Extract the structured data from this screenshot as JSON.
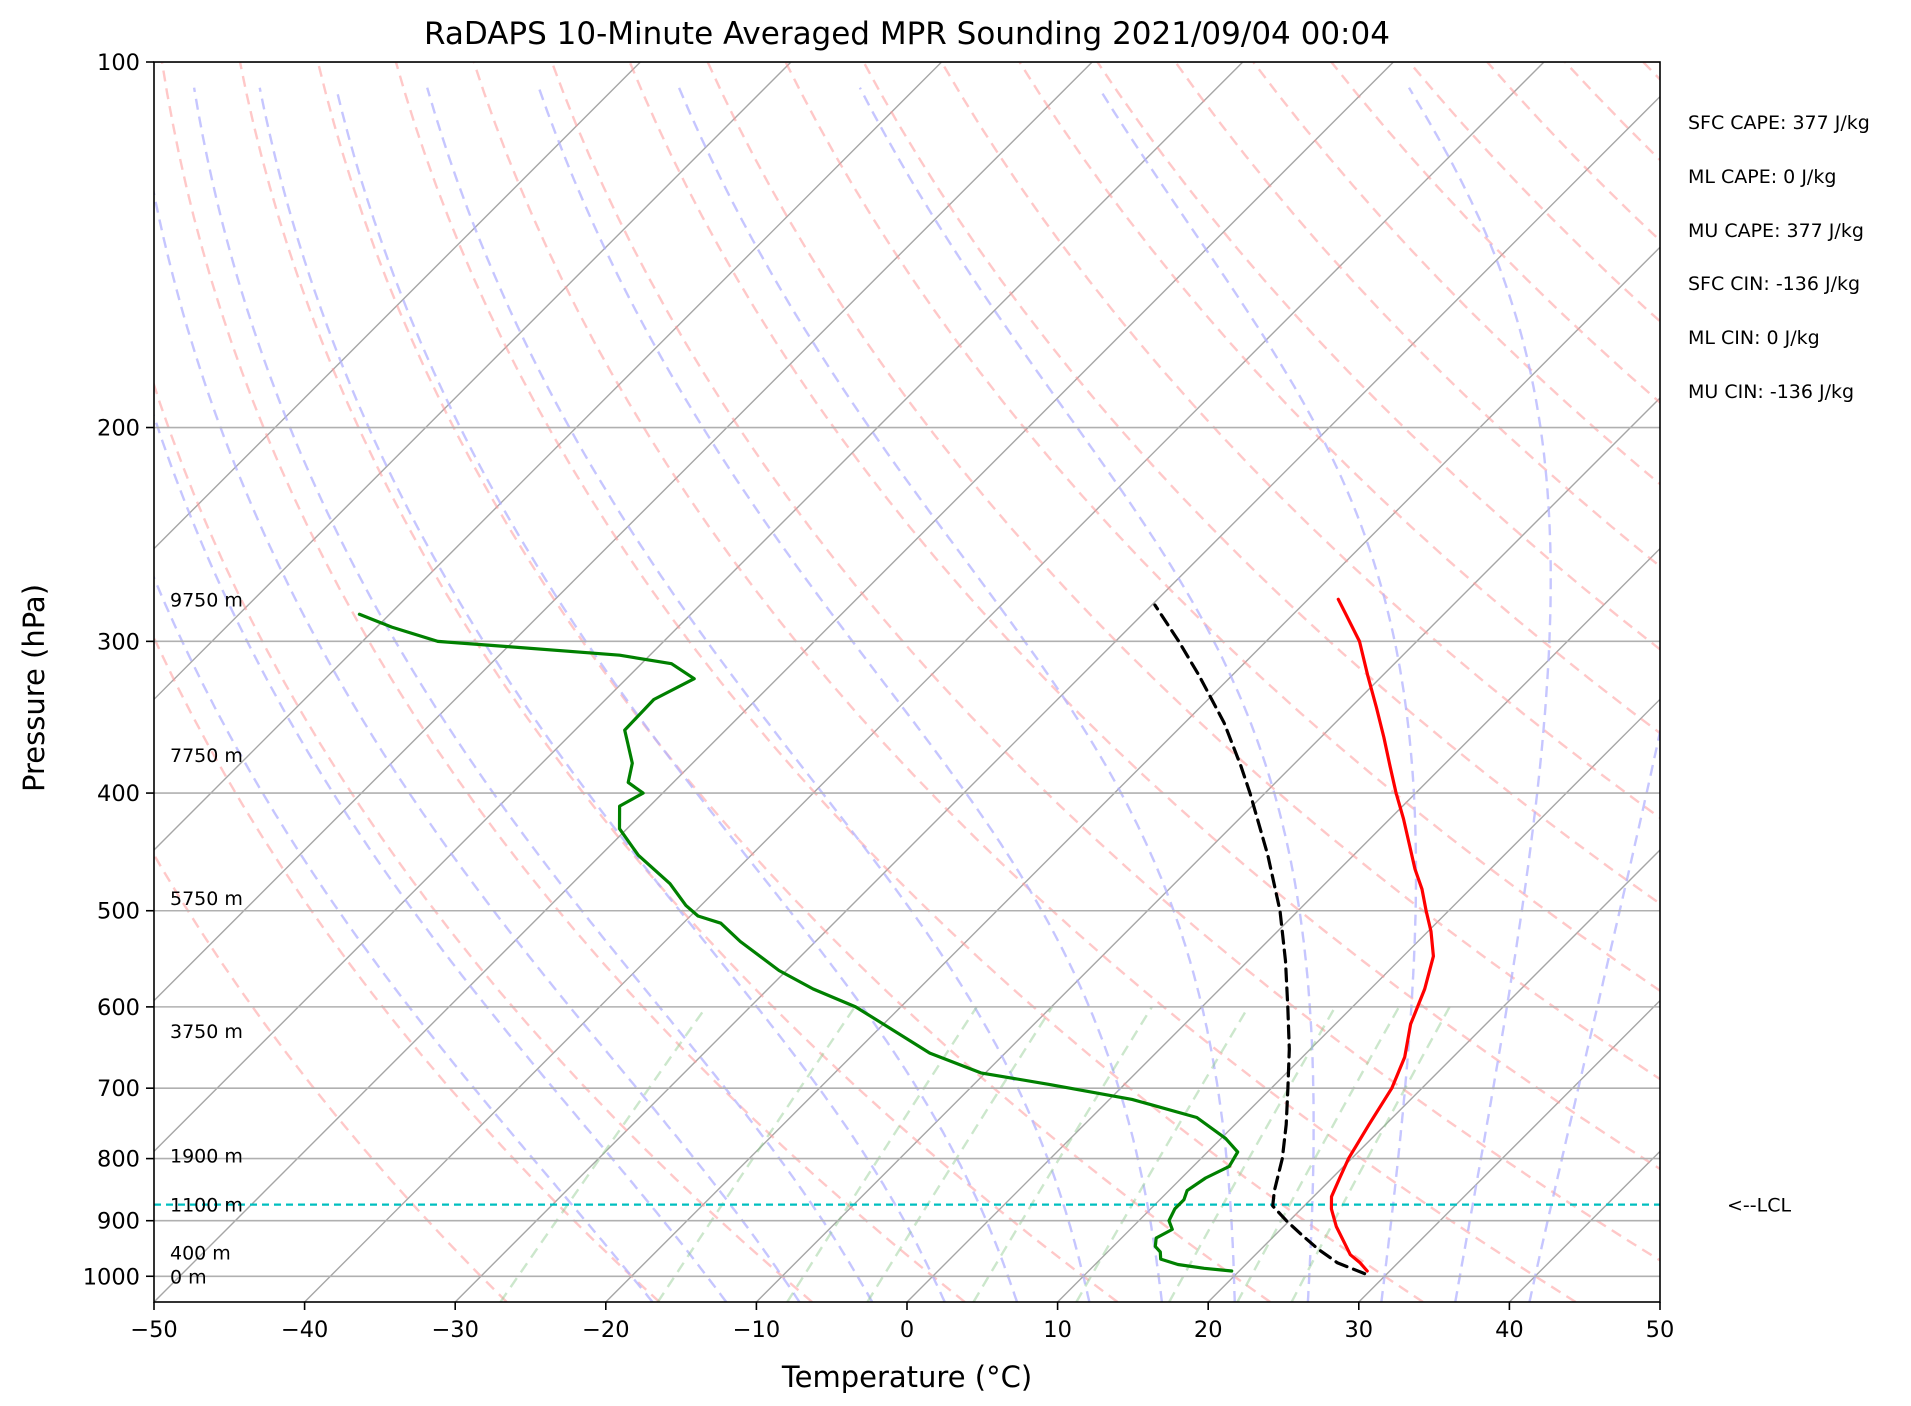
{
  "chart_data": {
    "type": "line",
    "title": "RaDAPS 10-Minute Averaged MPR Sounding 2021/09/04 00:04",
    "xlabel": "Temperature (°C)",
    "ylabel": "Pressure (hPa)",
    "xlim": [
      -50,
      50
    ],
    "ylim": [
      1050,
      100
    ],
    "y_scale": "log",
    "x_ticks": [
      "−50",
      "−40",
      "−30",
      "−20",
      "−10",
      "0",
      "10",
      "20",
      "30",
      "40",
      "50"
    ],
    "y_ticks": [
      "100",
      "200",
      "300",
      "400",
      "500",
      "600",
      "700",
      "800",
      "900",
      "1000"
    ],
    "x_tick_values": [
      -50,
      -40,
      -30,
      -20,
      -10,
      0,
      10,
      20,
      30,
      40,
      50
    ],
    "y_tick_values": [
      100,
      200,
      300,
      400,
      500,
      600,
      700,
      800,
      900,
      1000
    ],
    "grid": true,
    "background_lines": {
      "isotherms_C": [
        -100,
        -90,
        -80,
        -70,
        -60,
        -50,
        -40,
        -30,
        -20,
        -10,
        0,
        10,
        20,
        30,
        40,
        50
      ],
      "dry_adiabats_C": [
        -30,
        -20,
        -10,
        0,
        10,
        20,
        30,
        40,
        50,
        60,
        70,
        80,
        90,
        100,
        110,
        120,
        130,
        140,
        150,
        160,
        170,
        180,
        190,
        200
      ],
      "moist_adiabats_C": [
        -20,
        -15,
        -10,
        -5,
        0,
        5,
        10,
        15,
        20,
        25,
        30,
        35,
        40
      ],
      "mixing_ratio_lines_gkg": [
        0.4,
        1,
        2,
        3,
        5,
        8,
        12,
        16,
        20
      ]
    },
    "series": [
      {
        "role": "temperature",
        "color": "#ff0000",
        "points": [
          {
            "p": 990,
            "t": 28.5
          },
          {
            "p": 975,
            "t": 27.5
          },
          {
            "p": 960,
            "t": 26.3
          },
          {
            "p": 940,
            "t": 25.2
          },
          {
            "p": 910,
            "t": 23.5
          },
          {
            "p": 880,
            "t": 22.0
          },
          {
            "p": 860,
            "t": 21.2
          },
          {
            "p": 830,
            "t": 20.5
          },
          {
            "p": 800,
            "t": 19.8
          },
          {
            "p": 750,
            "t": 18.9
          },
          {
            "p": 700,
            "t": 18.0
          },
          {
            "p": 660,
            "t": 16.8
          },
          {
            "p": 620,
            "t": 15.0
          },
          {
            "p": 580,
            "t": 13.6
          },
          {
            "p": 545,
            "t": 12.0
          },
          {
            "p": 520,
            "t": 10.2
          },
          {
            "p": 500,
            "t": 8.5
          },
          {
            "p": 480,
            "t": 6.8
          },
          {
            "p": 462,
            "t": 5.0
          },
          {
            "p": 440,
            "t": 2.9
          },
          {
            "p": 420,
            "t": 0.9
          },
          {
            "p": 400,
            "t": -1.3
          },
          {
            "p": 380,
            "t": -3.5
          },
          {
            "p": 360,
            "t": -5.8
          },
          {
            "p": 340,
            "t": -8.3
          },
          {
            "p": 320,
            "t": -11.0
          },
          {
            "p": 300,
            "t": -13.8
          },
          {
            "p": 285,
            "t": -16.5
          },
          {
            "p": 277,
            "t": -18.0
          }
        ]
      },
      {
        "role": "dewpoint",
        "color": "#008000",
        "points": [
          {
            "p": 990,
            "t": 19.5
          },
          {
            "p": 985,
            "t": 17.5
          },
          {
            "p": 978,
            "t": 15.5
          },
          {
            "p": 968,
            "t": 14.0
          },
          {
            "p": 955,
            "t": 13.5
          },
          {
            "p": 945,
            "t": 12.8
          },
          {
            "p": 930,
            "t": 12.3
          },
          {
            "p": 915,
            "t": 12.8
          },
          {
            "p": 900,
            "t": 12.0
          },
          {
            "p": 880,
            "t": 11.6
          },
          {
            "p": 865,
            "t": 11.6
          },
          {
            "p": 850,
            "t": 11.2
          },
          {
            "p": 830,
            "t": 11.6
          },
          {
            "p": 812,
            "t": 12.4
          },
          {
            "p": 790,
            "t": 12.0
          },
          {
            "p": 770,
            "t": 10.3
          },
          {
            "p": 740,
            "t": 7.0
          },
          {
            "p": 715,
            "t": 1.5
          },
          {
            "p": 695,
            "t": -5.0
          },
          {
            "p": 680,
            "t": -10.3
          },
          {
            "p": 655,
            "t": -15.0
          },
          {
            "p": 620,
            "t": -20.0
          },
          {
            "p": 600,
            "t": -23.0
          },
          {
            "p": 580,
            "t": -27.0
          },
          {
            "p": 560,
            "t": -30.5
          },
          {
            "p": 530,
            "t": -35.0
          },
          {
            "p": 512,
            "t": -37.5
          },
          {
            "p": 505,
            "t": -39.5
          },
          {
            "p": 495,
            "t": -41.0
          },
          {
            "p": 475,
            "t": -43.5
          },
          {
            "p": 450,
            "t": -47.5
          },
          {
            "p": 428,
            "t": -50.5
          },
          {
            "p": 410,
            "t": -52.0
          },
          {
            "p": 400,
            "t": -51.3
          },
          {
            "p": 392,
            "t": -53.0
          },
          {
            "p": 378,
            "t": -54.0
          },
          {
            "p": 365,
            "t": -55.5
          },
          {
            "p": 355,
            "t": -56.7
          },
          {
            "p": 335,
            "t": -56.8
          },
          {
            "p": 322,
            "t": -55.5
          },
          {
            "p": 313,
            "t": -58.0
          },
          {
            "p": 308,
            "t": -62.0
          },
          {
            "p": 303,
            "t": -70.0
          },
          {
            "p": 300,
            "t": -75.0
          },
          {
            "p": 292,
            "t": -79.0
          },
          {
            "p": 285,
            "t": -82.0
          }
        ]
      },
      {
        "role": "parcel",
        "color": "#000000",
        "points": [
          {
            "p": 995,
            "t": 28.5
          },
          {
            "p": 975,
            "t": 26.0
          },
          {
            "p": 950,
            "t": 23.8
          },
          {
            "p": 925,
            "t": 21.8
          },
          {
            "p": 900,
            "t": 19.8
          },
          {
            "p": 875,
            "t": 17.9
          },
          {
            "p": 850,
            "t": 17.0
          },
          {
            "p": 800,
            "t": 15.4
          },
          {
            "p": 750,
            "t": 13.4
          },
          {
            "p": 700,
            "t": 11.1
          },
          {
            "p": 650,
            "t": 8.6
          },
          {
            "p": 600,
            "t": 5.7
          },
          {
            "p": 550,
            "t": 2.5
          },
          {
            "p": 500,
            "t": -1.2
          },
          {
            "p": 450,
            "t": -5.7
          },
          {
            "p": 400,
            "t": -11.0
          },
          {
            "p": 380,
            "t": -13.4
          },
          {
            "p": 350,
            "t": -17.4
          },
          {
            "p": 320,
            "t": -22.2
          },
          {
            "p": 300,
            "t": -25.8
          },
          {
            "p": 280,
            "t": -29.8
          }
        ]
      }
    ],
    "lcl": {
      "p": 873,
      "label": "<--LCL",
      "color": "#00bfbf"
    },
    "height_labels": [
      {
        "p": 277,
        "label": "9750 m"
      },
      {
        "p": 372,
        "label": "7750 m"
      },
      {
        "p": 488,
        "label": "5750 m"
      },
      {
        "p": 628,
        "label": "3750 m"
      },
      {
        "p": 795,
        "label": "1900 m"
      },
      {
        "p": 873,
        "label": "1100 m"
      },
      {
        "p": 956,
        "label": "400 m"
      },
      {
        "p": 1000,
        "label": "0 m"
      }
    ],
    "indices": [
      "SFC CAPE: 377 J/kg",
      "ML CAPE: 0 J/kg",
      "MU CAPE: 377 J/kg",
      "SFC CIN: -136 J/kg",
      "ML CIN: 0 J/kg",
      "MU CIN: -136 J/kg"
    ]
  }
}
